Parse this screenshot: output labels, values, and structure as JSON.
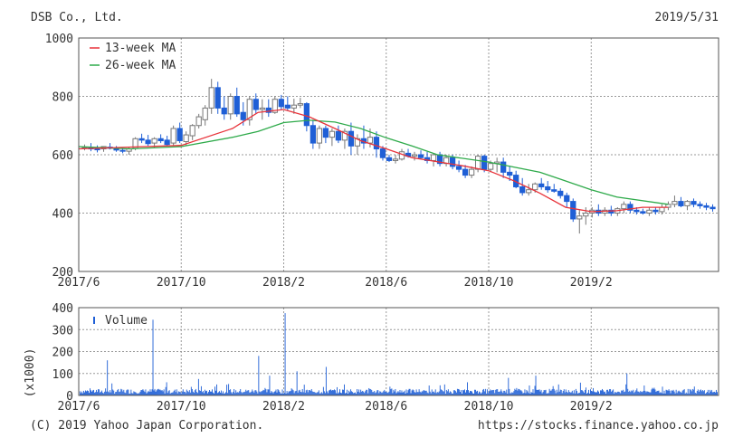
{
  "header": {
    "company": "DSB Co., Ltd.",
    "date": "2019/5/31"
  },
  "footer": {
    "copyright": "(C) 2019 Yahoo Japan Corporation.",
    "url": "https://stocks.finance.yahoo.co.jp"
  },
  "colors": {
    "up_candle": "#777777",
    "down_candle": "#1f5fd6",
    "ma13": "#e8333a",
    "ma26": "#2eaa4a",
    "volume": "#1f5fd6",
    "grid": "#999999",
    "frame": "#555555"
  },
  "chart_data": [
    {
      "type": "candlestick",
      "ylim": [
        200,
        1000
      ],
      "y_ticks": [
        "200",
        "400",
        "600",
        "800",
        "1000"
      ],
      "x_ticks": [
        "2017/6",
        "2017/10",
        "2018/2",
        "2018/6",
        "2018/10",
        "2019/2"
      ],
      "grid": true,
      "legend": {
        "placement": "top-left",
        "entries": [
          "13-week MA",
          "26-week MA"
        ]
      },
      "ohlc": [
        [
          625,
          635,
          615,
          625
        ],
        [
          625,
          640,
          612,
          620
        ],
        [
          620,
          632,
          608,
          618
        ],
        [
          620,
          628,
          610,
          628
        ],
        [
          626,
          640,
          618,
          622
        ],
        [
          620,
          630,
          610,
          616
        ],
        [
          615,
          622,
          605,
          612
        ],
        [
          612,
          625,
          600,
          620
        ],
        [
          622,
          660,
          615,
          655
        ],
        [
          655,
          672,
          640,
          650
        ],
        [
          650,
          668,
          630,
          638
        ],
        [
          640,
          660,
          625,
          655
        ],
        [
          655,
          670,
          640,
          648
        ],
        [
          650,
          665,
          630,
          635
        ],
        [
          640,
          700,
          630,
          690
        ],
        [
          690,
          710,
          640,
          648
        ],
        [
          645,
          680,
          630,
          668
        ],
        [
          665,
          705,
          650,
          700
        ],
        [
          700,
          740,
          690,
          730
        ],
        [
          720,
          770,
          700,
          760
        ],
        [
          760,
          860,
          740,
          830
        ],
        [
          830,
          850,
          740,
          760
        ],
        [
          760,
          800,
          720,
          740
        ],
        [
          740,
          810,
          720,
          800
        ],
        [
          800,
          830,
          730,
          740
        ],
        [
          745,
          780,
          700,
          720
        ],
        [
          720,
          800,
          700,
          790
        ],
        [
          790,
          810,
          740,
          755
        ],
        [
          755,
          790,
          720,
          760
        ],
        [
          760,
          790,
          730,
          745
        ],
        [
          745,
          800,
          740,
          790
        ],
        [
          790,
          805,
          755,
          765
        ],
        [
          770,
          800,
          750,
          760
        ],
        [
          760,
          792,
          740,
          770
        ],
        [
          770,
          795,
          760,
          775
        ],
        [
          775,
          780,
          680,
          700
        ],
        [
          700,
          720,
          620,
          640
        ],
        [
          640,
          700,
          620,
          690
        ],
        [
          690,
          700,
          640,
          660
        ],
        [
          660,
          690,
          630,
          680
        ],
        [
          680,
          700,
          640,
          650
        ],
        [
          650,
          690,
          620,
          680
        ],
        [
          680,
          710,
          600,
          630
        ],
        [
          630,
          670,
          600,
          655
        ],
        [
          655,
          700,
          620,
          640
        ],
        [
          640,
          690,
          625,
          660
        ],
        [
          660,
          680,
          590,
          620
        ],
        [
          620,
          630,
          580,
          590
        ],
        [
          590,
          600,
          575,
          580
        ],
        [
          580,
          600,
          570,
          585
        ],
        [
          585,
          620,
          580,
          610
        ],
        [
          605,
          620,
          590,
          595
        ],
        [
          595,
          610,
          580,
          600
        ],
        [
          600,
          615,
          585,
          590
        ],
        [
          590,
          610,
          570,
          580
        ],
        [
          580,
          605,
          560,
          600
        ],
        [
          600,
          610,
          560,
          570
        ],
        [
          570,
          600,
          560,
          590
        ],
        [
          590,
          600,
          550,
          560
        ],
        [
          560,
          580,
          540,
          550
        ],
        [
          550,
          565,
          520,
          530
        ],
        [
          530,
          560,
          520,
          550
        ],
        [
          550,
          600,
          540,
          595
        ],
        [
          595,
          600,
          540,
          550
        ],
        [
          550,
          580,
          540,
          570
        ],
        [
          570,
          590,
          540,
          575
        ],
        [
          575,
          590,
          520,
          540
        ],
        [
          540,
          560,
          510,
          530
        ],
        [
          530,
          545,
          485,
          490
        ],
        [
          490,
          520,
          460,
          470
        ],
        [
          470,
          500,
          460,
          480
        ],
        [
          480,
          505,
          470,
          500
        ],
        [
          500,
          520,
          480,
          490
        ],
        [
          490,
          510,
          470,
          480
        ],
        [
          480,
          500,
          470,
          475
        ],
        [
          475,
          485,
          450,
          460
        ],
        [
          460,
          470,
          420,
          440
        ],
        [
          440,
          450,
          370,
          380
        ],
        [
          380,
          410,
          330,
          390
        ],
        [
          390,
          420,
          360,
          400
        ],
        [
          400,
          420,
          385,
          410
        ],
        [
          410,
          430,
          390,
          400
        ],
        [
          400,
          420,
          390,
          410
        ],
        [
          410,
          425,
          390,
          400
        ],
        [
          400,
          420,
          390,
          415
        ],
        [
          415,
          440,
          400,
          430
        ],
        [
          430,
          440,
          400,
          410
        ],
        [
          410,
          420,
          395,
          405
        ],
        [
          405,
          415,
          395,
          400
        ],
        [
          400,
          420,
          390,
          410
        ],
        [
          410,
          420,
          395,
          405
        ],
        [
          405,
          430,
          395,
          420
        ],
        [
          420,
          440,
          410,
          430
        ],
        [
          430,
          460,
          420,
          440
        ],
        [
          440,
          455,
          420,
          425
        ],
        [
          425,
          445,
          410,
          440
        ],
        [
          440,
          450,
          420,
          430
        ],
        [
          430,
          440,
          415,
          425
        ],
        [
          425,
          435,
          410,
          420
        ],
        [
          420,
          430,
          405,
          415
        ]
      ],
      "ma13": [
        [
          "2017/6",
          620
        ],
        [
          "2017/10",
          632
        ],
        [
          "2017/12",
          690
        ],
        [
          "2018/1",
          745
        ],
        [
          "2018/2",
          755
        ],
        [
          "2018/3",
          730
        ],
        [
          "2018/4",
          690
        ],
        [
          "2018/5",
          648
        ],
        [
          "2018/6",
          620
        ],
        [
          "2018/7",
          590
        ],
        [
          "2018/9",
          562
        ],
        [
          "2018/10",
          545
        ],
        [
          "2018/11",
          510
        ],
        [
          "2018/12",
          468
        ],
        [
          "2019/1",
          420
        ],
        [
          "2019/2",
          405
        ],
        [
          "2019/3",
          408
        ],
        [
          "2019/4",
          420
        ],
        [
          "2019/5",
          420
        ]
      ],
      "ma26": [
        [
          "2017/6",
          628
        ],
        [
          "2017/8",
          620
        ],
        [
          "2017/10",
          628
        ],
        [
          "2017/12",
          660
        ],
        [
          "2018/1",
          680
        ],
        [
          "2018/2",
          710
        ],
        [
          "2018/3",
          718
        ],
        [
          "2018/4",
          712
        ],
        [
          "2018/5",
          690
        ],
        [
          "2018/6",
          658
        ],
        [
          "2018/7",
          630
        ],
        [
          "2018/8",
          600
        ],
        [
          "2018/10",
          575
        ],
        [
          "2018/12",
          540
        ],
        [
          "2019/1",
          510
        ],
        [
          "2019/2",
          480
        ],
        [
          "2019/3",
          455
        ],
        [
          "2019/5",
          430
        ]
      ]
    },
    {
      "type": "bar",
      "ylabel": "(x1000)",
      "ylim": [
        0,
        400
      ],
      "y_ticks": [
        "0",
        "100",
        "200",
        "300",
        "400"
      ],
      "x_ticks": [
        "2017/6",
        "2017/10",
        "2018/2",
        "2018/6",
        "2018/10",
        "2019/2"
      ],
      "grid": true,
      "legend": {
        "placement": "top-left",
        "entries": [
          "Volume"
        ]
      },
      "spikes": [
        [
          30,
          160
        ],
        [
          80,
          345
        ],
        [
          95,
          60
        ],
        [
          130,
          75
        ],
        [
          150,
          50
        ],
        [
          196,
          180
        ],
        [
          208,
          90
        ],
        [
          225,
          375
        ],
        [
          238,
          110
        ],
        [
          270,
          130
        ],
        [
          290,
          50
        ],
        [
          340,
          40
        ],
        [
          400,
          50
        ],
        [
          425,
          60
        ],
        [
          470,
          80
        ],
        [
          500,
          90
        ],
        [
          525,
          50
        ],
        [
          600,
          100
        ],
        [
          630,
          35
        ]
      ]
    }
  ]
}
